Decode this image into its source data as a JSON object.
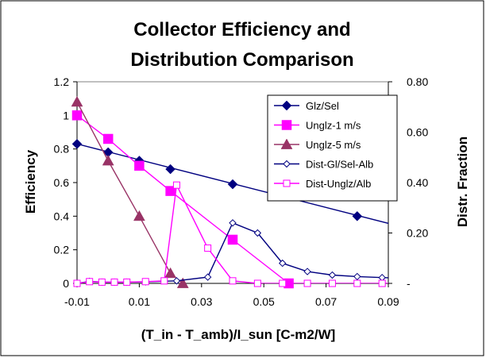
{
  "chart_data": {
    "type": "line",
    "title_line1": "Collector Efficiency and",
    "title_line2": "Distribution Comparison",
    "xlabel": "(T_in - T_amb)/I_sun [C-m2/W]",
    "ylabel": "Efficiency",
    "y2label": "Distr. Fraction",
    "xlim": [
      -0.01,
      0.09
    ],
    "ylim": [
      0,
      1.2
    ],
    "y2lim": [
      0,
      0.8
    ],
    "x_ticks": [
      "-0.01",
      "0.01",
      "0.03",
      "0.05",
      "0.07",
      "0.09"
    ],
    "x_tick_values": [
      -0.01,
      0.01,
      0.03,
      0.05,
      0.07,
      0.09
    ],
    "y_ticks": [
      "0",
      "0.2",
      "0.4",
      "0.6",
      "0.8",
      "1",
      "1.2"
    ],
    "y_tick_values": [
      0,
      0.2,
      0.4,
      0.6,
      0.8,
      1.0,
      1.2
    ],
    "y2_ticks": [
      "-",
      "0.20",
      "0.40",
      "0.60",
      "0.80"
    ],
    "y2_tick_values": [
      0,
      0.2,
      0.4,
      0.6,
      0.8
    ],
    "grid": false,
    "legend_position": "top-right",
    "series": [
      {
        "name": "Glz/Sel",
        "axis": "left",
        "color": "#000080",
        "marker": "diamond-filled",
        "markerSize": 6,
        "line_x": [
          -0.01,
          0.1
        ],
        "line_y": [
          0.83,
          0.31
        ],
        "x": [
          -0.01,
          0.0,
          0.01,
          0.02,
          0.04,
          0.08
        ],
        "y": [
          0.83,
          0.78,
          0.73,
          0.68,
          0.59,
          0.4
        ]
      },
      {
        "name": "Unglz-1 m/s",
        "axis": "left",
        "color": "#ff00ff",
        "marker": "square-filled",
        "markerSize": 6,
        "x": [
          -0.01,
          0.0,
          0.01,
          0.02,
          0.04,
          0.058
        ],
        "y": [
          1.0,
          0.86,
          0.7,
          0.55,
          0.26,
          0.0
        ]
      },
      {
        "name": "Unglz-5 m/s",
        "axis": "left",
        "color": "#993366",
        "marker": "triangle-filled",
        "markerSize": 7,
        "x": [
          -0.01,
          0.0,
          0.01,
          0.02,
          0.024
        ],
        "y": [
          1.08,
          0.73,
          0.4,
          0.06,
          0.0
        ]
      },
      {
        "name": "Dist-Gl/Sel-Alb",
        "axis": "right",
        "color": "#000080",
        "marker": "diamond-open",
        "markerSize": 4,
        "x": [
          -0.01,
          -0.006,
          -0.002,
          0.002,
          0.006,
          0.012,
          0.022,
          0.032,
          0.04,
          0.048,
          0.056,
          0.064,
          0.072,
          0.08,
          0.088,
          0.096
        ],
        "y": [
          0.0,
          0.008,
          0.005,
          0.005,
          0.005,
          0.006,
          0.01,
          0.025,
          0.24,
          0.2,
          0.08,
          0.047,
          0.033,
          0.027,
          0.023,
          0.02
        ]
      },
      {
        "name": "Dist-Unglz/Alb",
        "axis": "right",
        "color": "#ff00ff",
        "marker": "square-open",
        "markerSize": 4,
        "x": [
          -0.01,
          -0.006,
          -0.002,
          0.002,
          0.006,
          0.012,
          0.018,
          0.022,
          0.032,
          0.04,
          0.048,
          0.056,
          0.064,
          0.072,
          0.08,
          0.088,
          0.096
        ],
        "y": [
          0.0,
          0.007,
          0.005,
          0.005,
          0.005,
          0.007,
          0.01,
          0.39,
          0.14,
          0.01,
          0.0,
          0.0,
          0.0,
          0.0,
          0.0,
          0.0,
          0.0
        ]
      }
    ]
  }
}
